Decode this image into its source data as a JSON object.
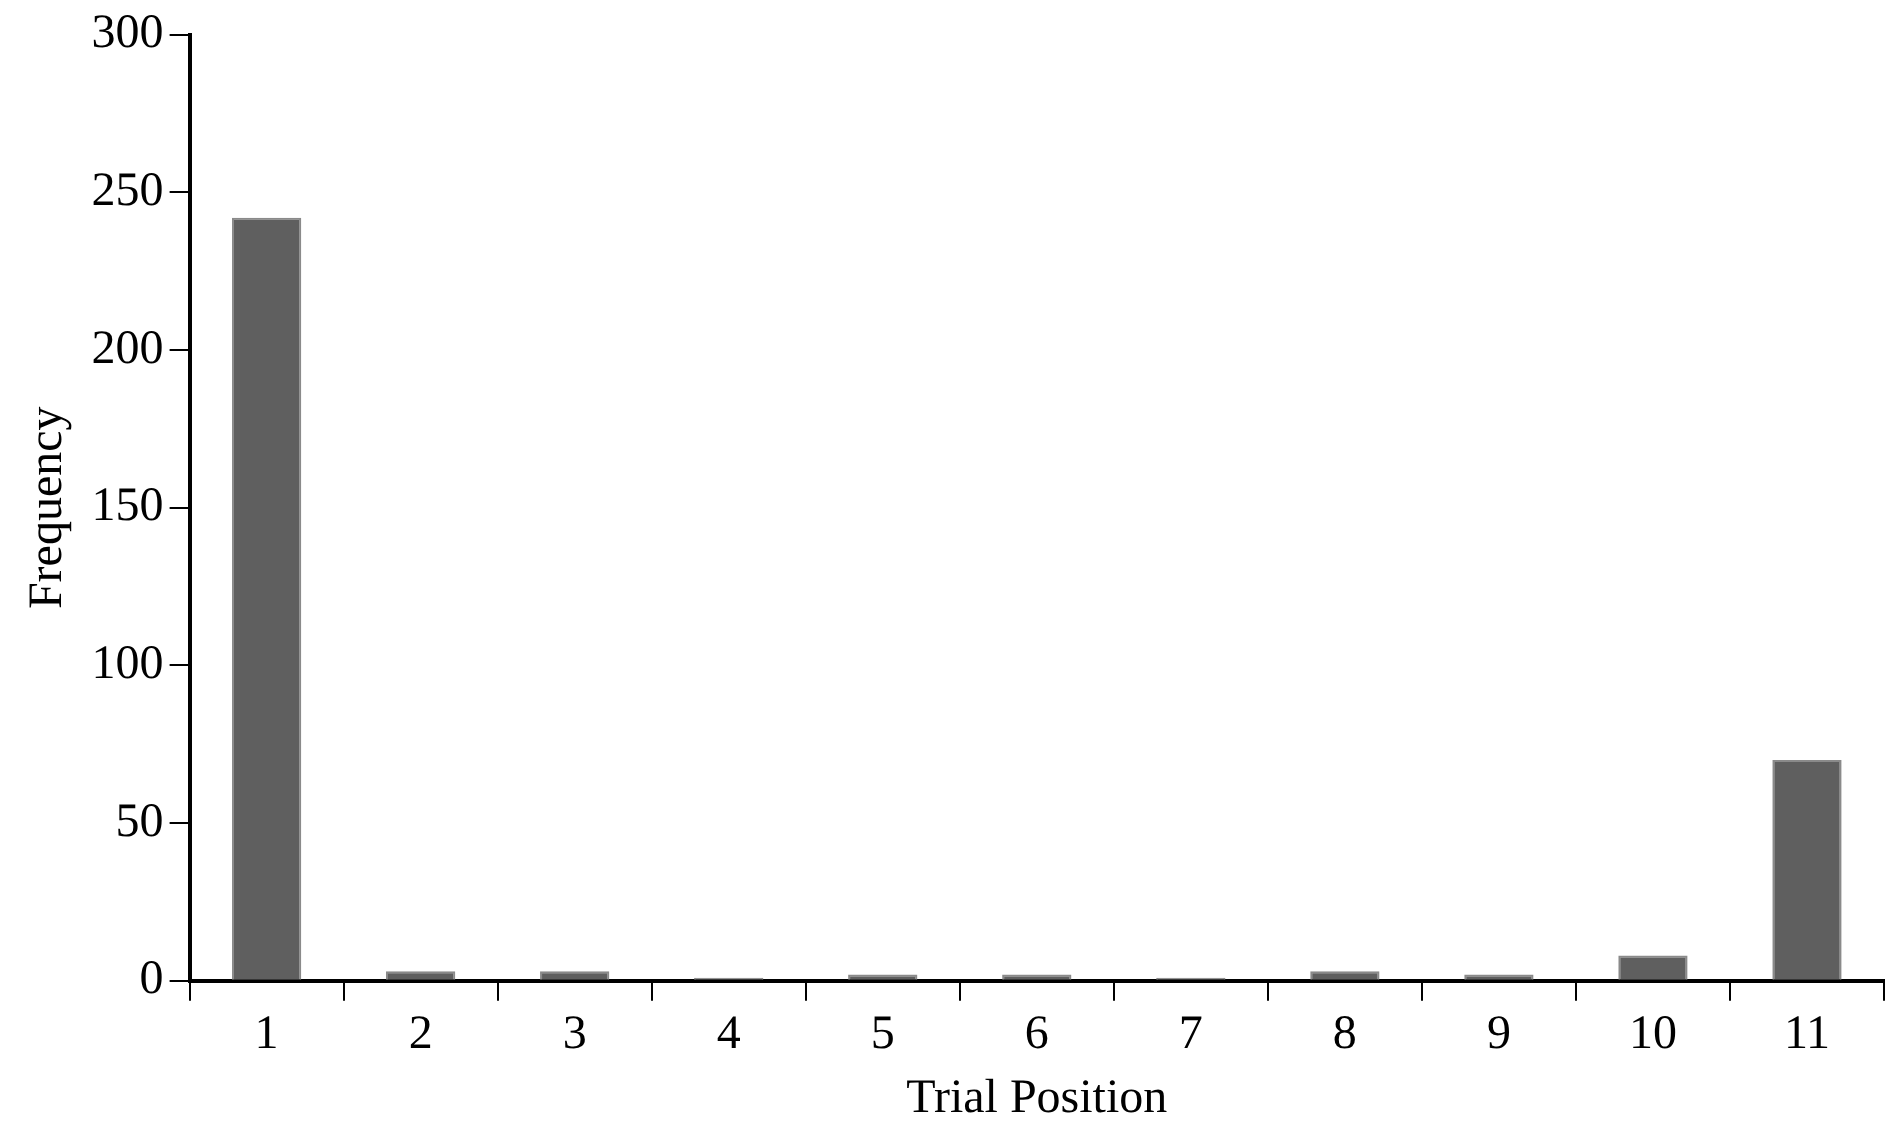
{
  "chart_data": {
    "type": "bar",
    "xlabel": "Trial Position",
    "ylabel": "Frequency",
    "categories": [
      "1",
      "2",
      "3",
      "4",
      "5",
      "6",
      "7",
      "8",
      "9",
      "10",
      "11"
    ],
    "values": [
      242,
      3,
      3,
      1,
      2,
      2,
      1,
      3,
      2,
      8,
      70
    ],
    "color": "#5f5f5f",
    "ylim": [
      0,
      300
    ],
    "yticks": [
      0,
      50,
      100,
      150,
      200,
      250,
      300
    ],
    "grid": false,
    "legend": false
  }
}
